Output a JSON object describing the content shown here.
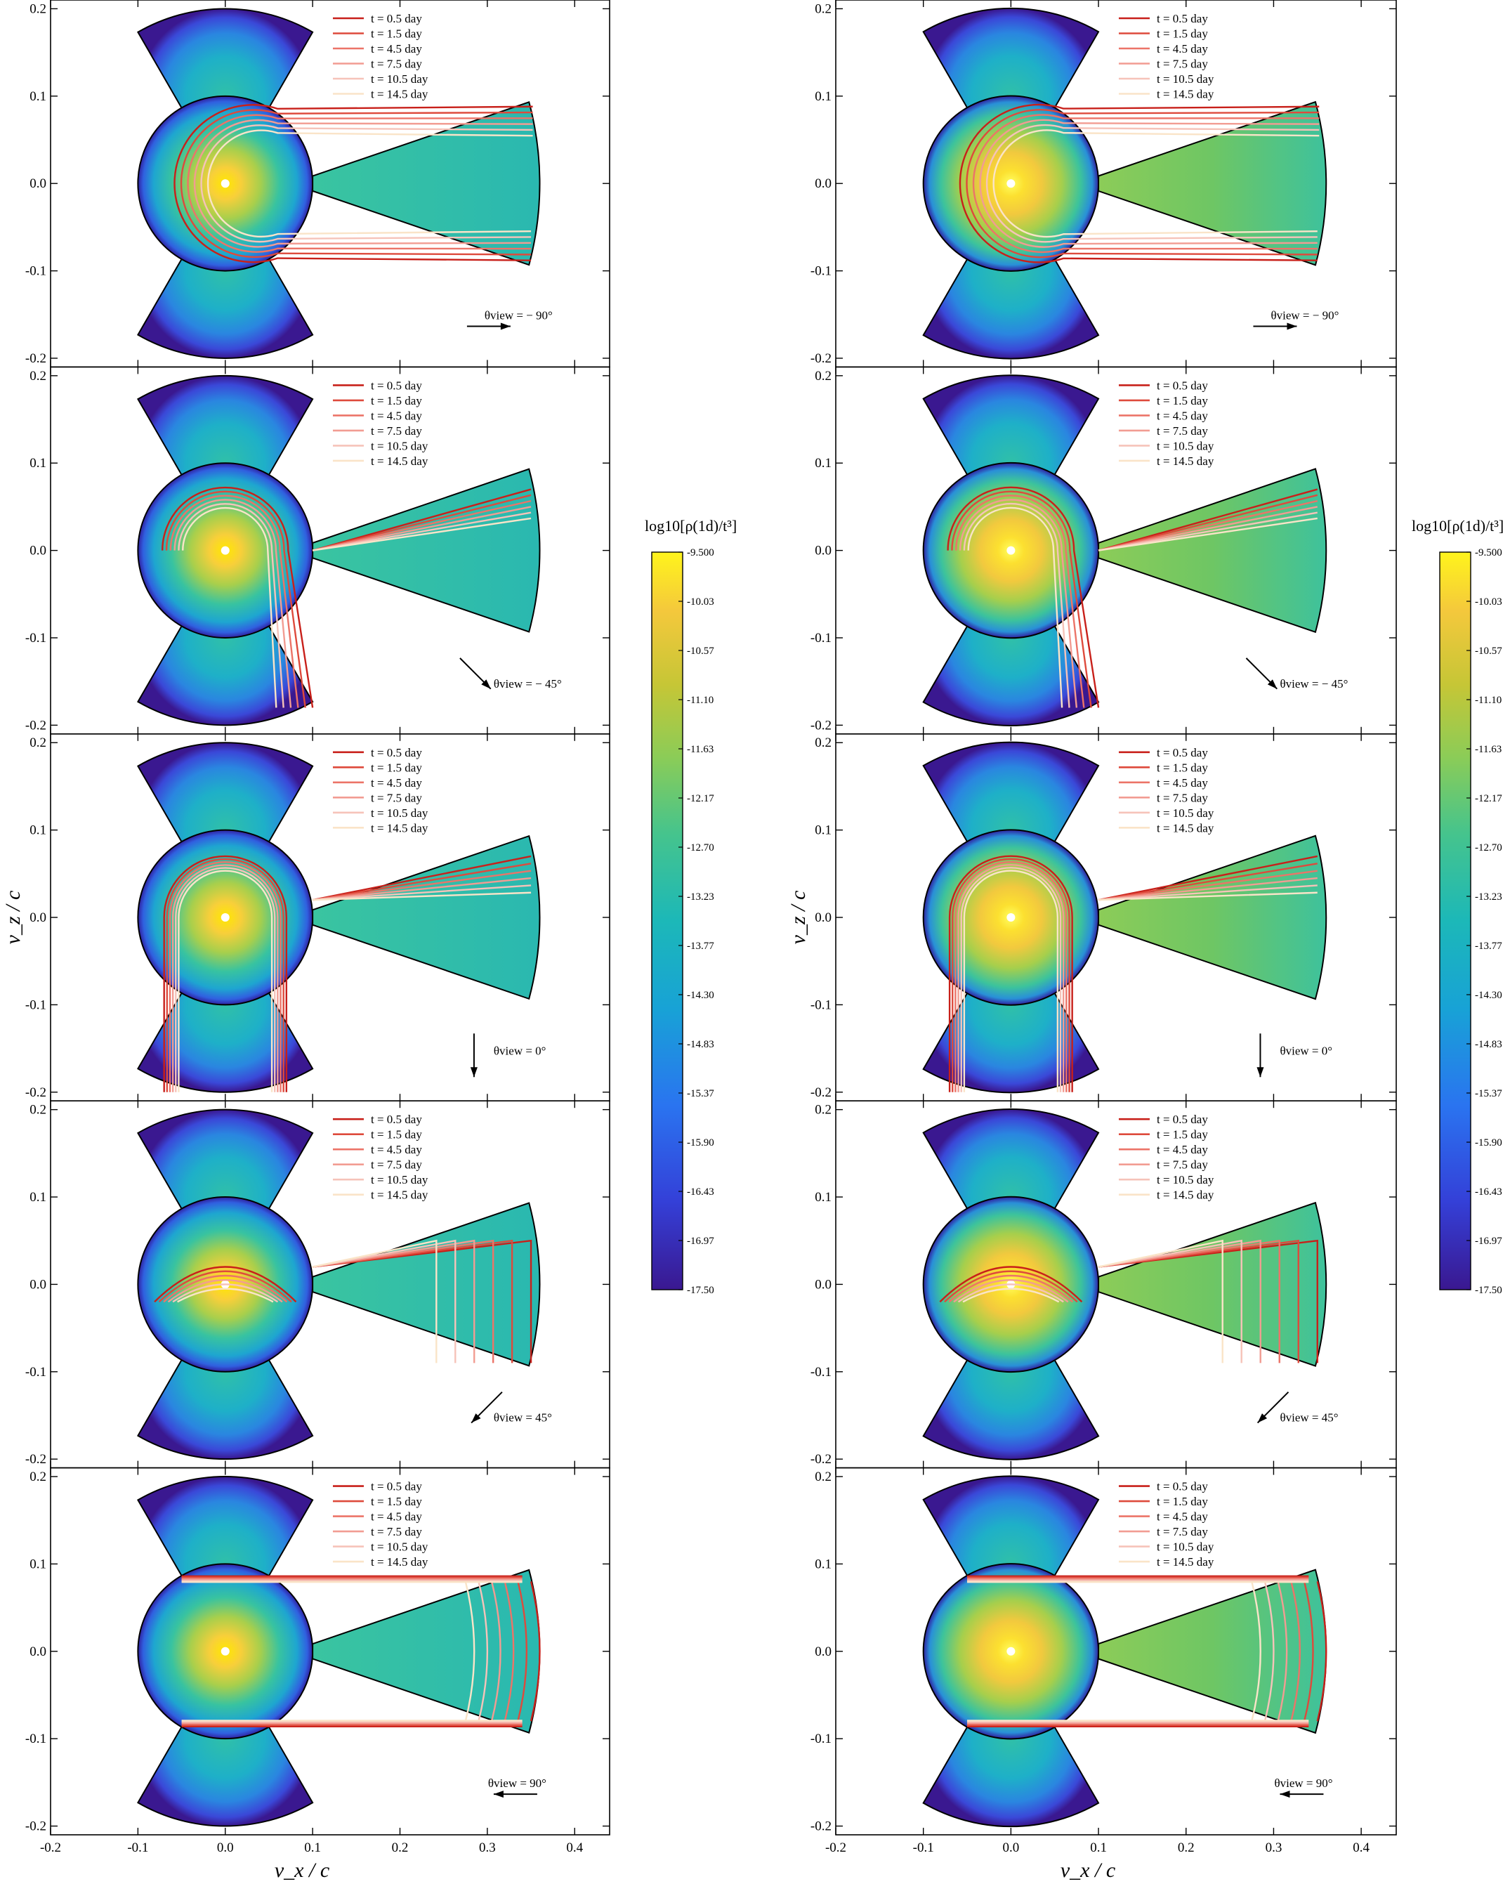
{
  "chart_data": [
    {
      "type": "heatmap",
      "title": "",
      "xlabel": "v_x / c",
      "ylabel": "v_z / c",
      "xlim": [
        -0.2,
        0.44
      ],
      "ylim": [
        -0.21,
        0.21
      ],
      "xticks": [
        "-0.2",
        "-0.1",
        "0.0",
        "0.1",
        "0.2",
        "0.3",
        "0.4"
      ],
      "yticks": [
        "-0.2",
        "-0.1",
        "0.0",
        "0.1",
        "0.2"
      ],
      "legend_position": "top-right",
      "series": [
        {
          "name": "t = 0.5 day",
          "color": "#c8201a"
        },
        {
          "name": "t = 1.5 day",
          "color": "#de4a3c"
        },
        {
          "name": "t = 4.5 day",
          "color": "#ec7468"
        },
        {
          "name": "t = 7.5 day",
          "color": "#f29c92"
        },
        {
          "name": "t = 10.5 day",
          "color": "#f6c3b9"
        },
        {
          "name": "t = 14.5 day",
          "color": "#fae4c8"
        }
      ],
      "panels": [
        {
          "view_label": "θview = − 90°",
          "view_angle_deg": -90
        },
        {
          "view_label": "θview = − 45°",
          "view_angle_deg": -45
        },
        {
          "view_label": "θview = 0°",
          "view_angle_deg": 0
        },
        {
          "view_label": "θview = 45°",
          "view_angle_deg": 45
        },
        {
          "view_label": "θview = 90°",
          "view_angle_deg": 90
        }
      ],
      "colorbar": {
        "label": "log10[ρ(1d)/t³]",
        "range": [
          -17.5,
          -9.5
        ],
        "ticks": [
          "-9.500",
          "-10.03",
          "-10.57",
          "-11.10",
          "-11.63",
          "-12.17",
          "-12.70",
          "-13.23",
          "-13.77",
          "-14.30",
          "-14.83",
          "-15.37",
          "-15.90",
          "-16.43",
          "-16.97",
          "-17.50"
        ]
      }
    },
    {
      "type": "heatmap",
      "title": "",
      "xlabel": "v_x / c",
      "ylabel": "v_z / c",
      "xlim": [
        -0.2,
        0.44
      ],
      "ylim": [
        -0.21,
        0.21
      ],
      "xticks": [
        "-0.2",
        "-0.1",
        "0.0",
        "0.1",
        "0.2",
        "0.3",
        "0.4"
      ],
      "yticks": [
        "-0.2",
        "-0.1",
        "0.0",
        "0.1",
        "0.2"
      ],
      "legend_position": "top-right",
      "series": [
        {
          "name": "t = 0.5 day",
          "color": "#c8201a"
        },
        {
          "name": "t = 1.5 day",
          "color": "#de4a3c"
        },
        {
          "name": "t = 4.5 day",
          "color": "#ec7468"
        },
        {
          "name": "t = 7.5 day",
          "color": "#f29c92"
        },
        {
          "name": "t = 10.5 day",
          "color": "#f6c3b9"
        },
        {
          "name": "t = 14.5 day",
          "color": "#fae4c8"
        }
      ],
      "panels": [
        {
          "view_label": "θview = − 90°",
          "view_angle_deg": -90
        },
        {
          "view_label": "θview = − 45°",
          "view_angle_deg": -45
        },
        {
          "view_label": "θview = 0°",
          "view_angle_deg": 0
        },
        {
          "view_label": "θview = 45°",
          "view_angle_deg": 45
        },
        {
          "view_label": "θview = 90°",
          "view_angle_deg": 90
        }
      ],
      "colorbar": {
        "label": "log10[ρ(1d)/t³]",
        "range": [
          -17.5,
          -9.5
        ],
        "ticks": [
          "-9.500",
          "-10.03",
          "-10.57",
          "-11.10",
          "-11.63",
          "-12.17",
          "-12.70",
          "-13.23",
          "-13.77",
          "-14.30",
          "-14.83",
          "-15.37",
          "-15.90",
          "-16.43",
          "-16.97",
          "-17.50"
        ]
      }
    }
  ],
  "model_geometry": {
    "sphere_radius": 0.1,
    "polar_wedge_half_angle_deg": 30,
    "polar_wedge_radius": 0.2,
    "disk_wedge_radius_inner": 0.1,
    "disk_wedge_radius_outer": 0.36,
    "disk_wedge_half_angle_deg": 15
  }
}
